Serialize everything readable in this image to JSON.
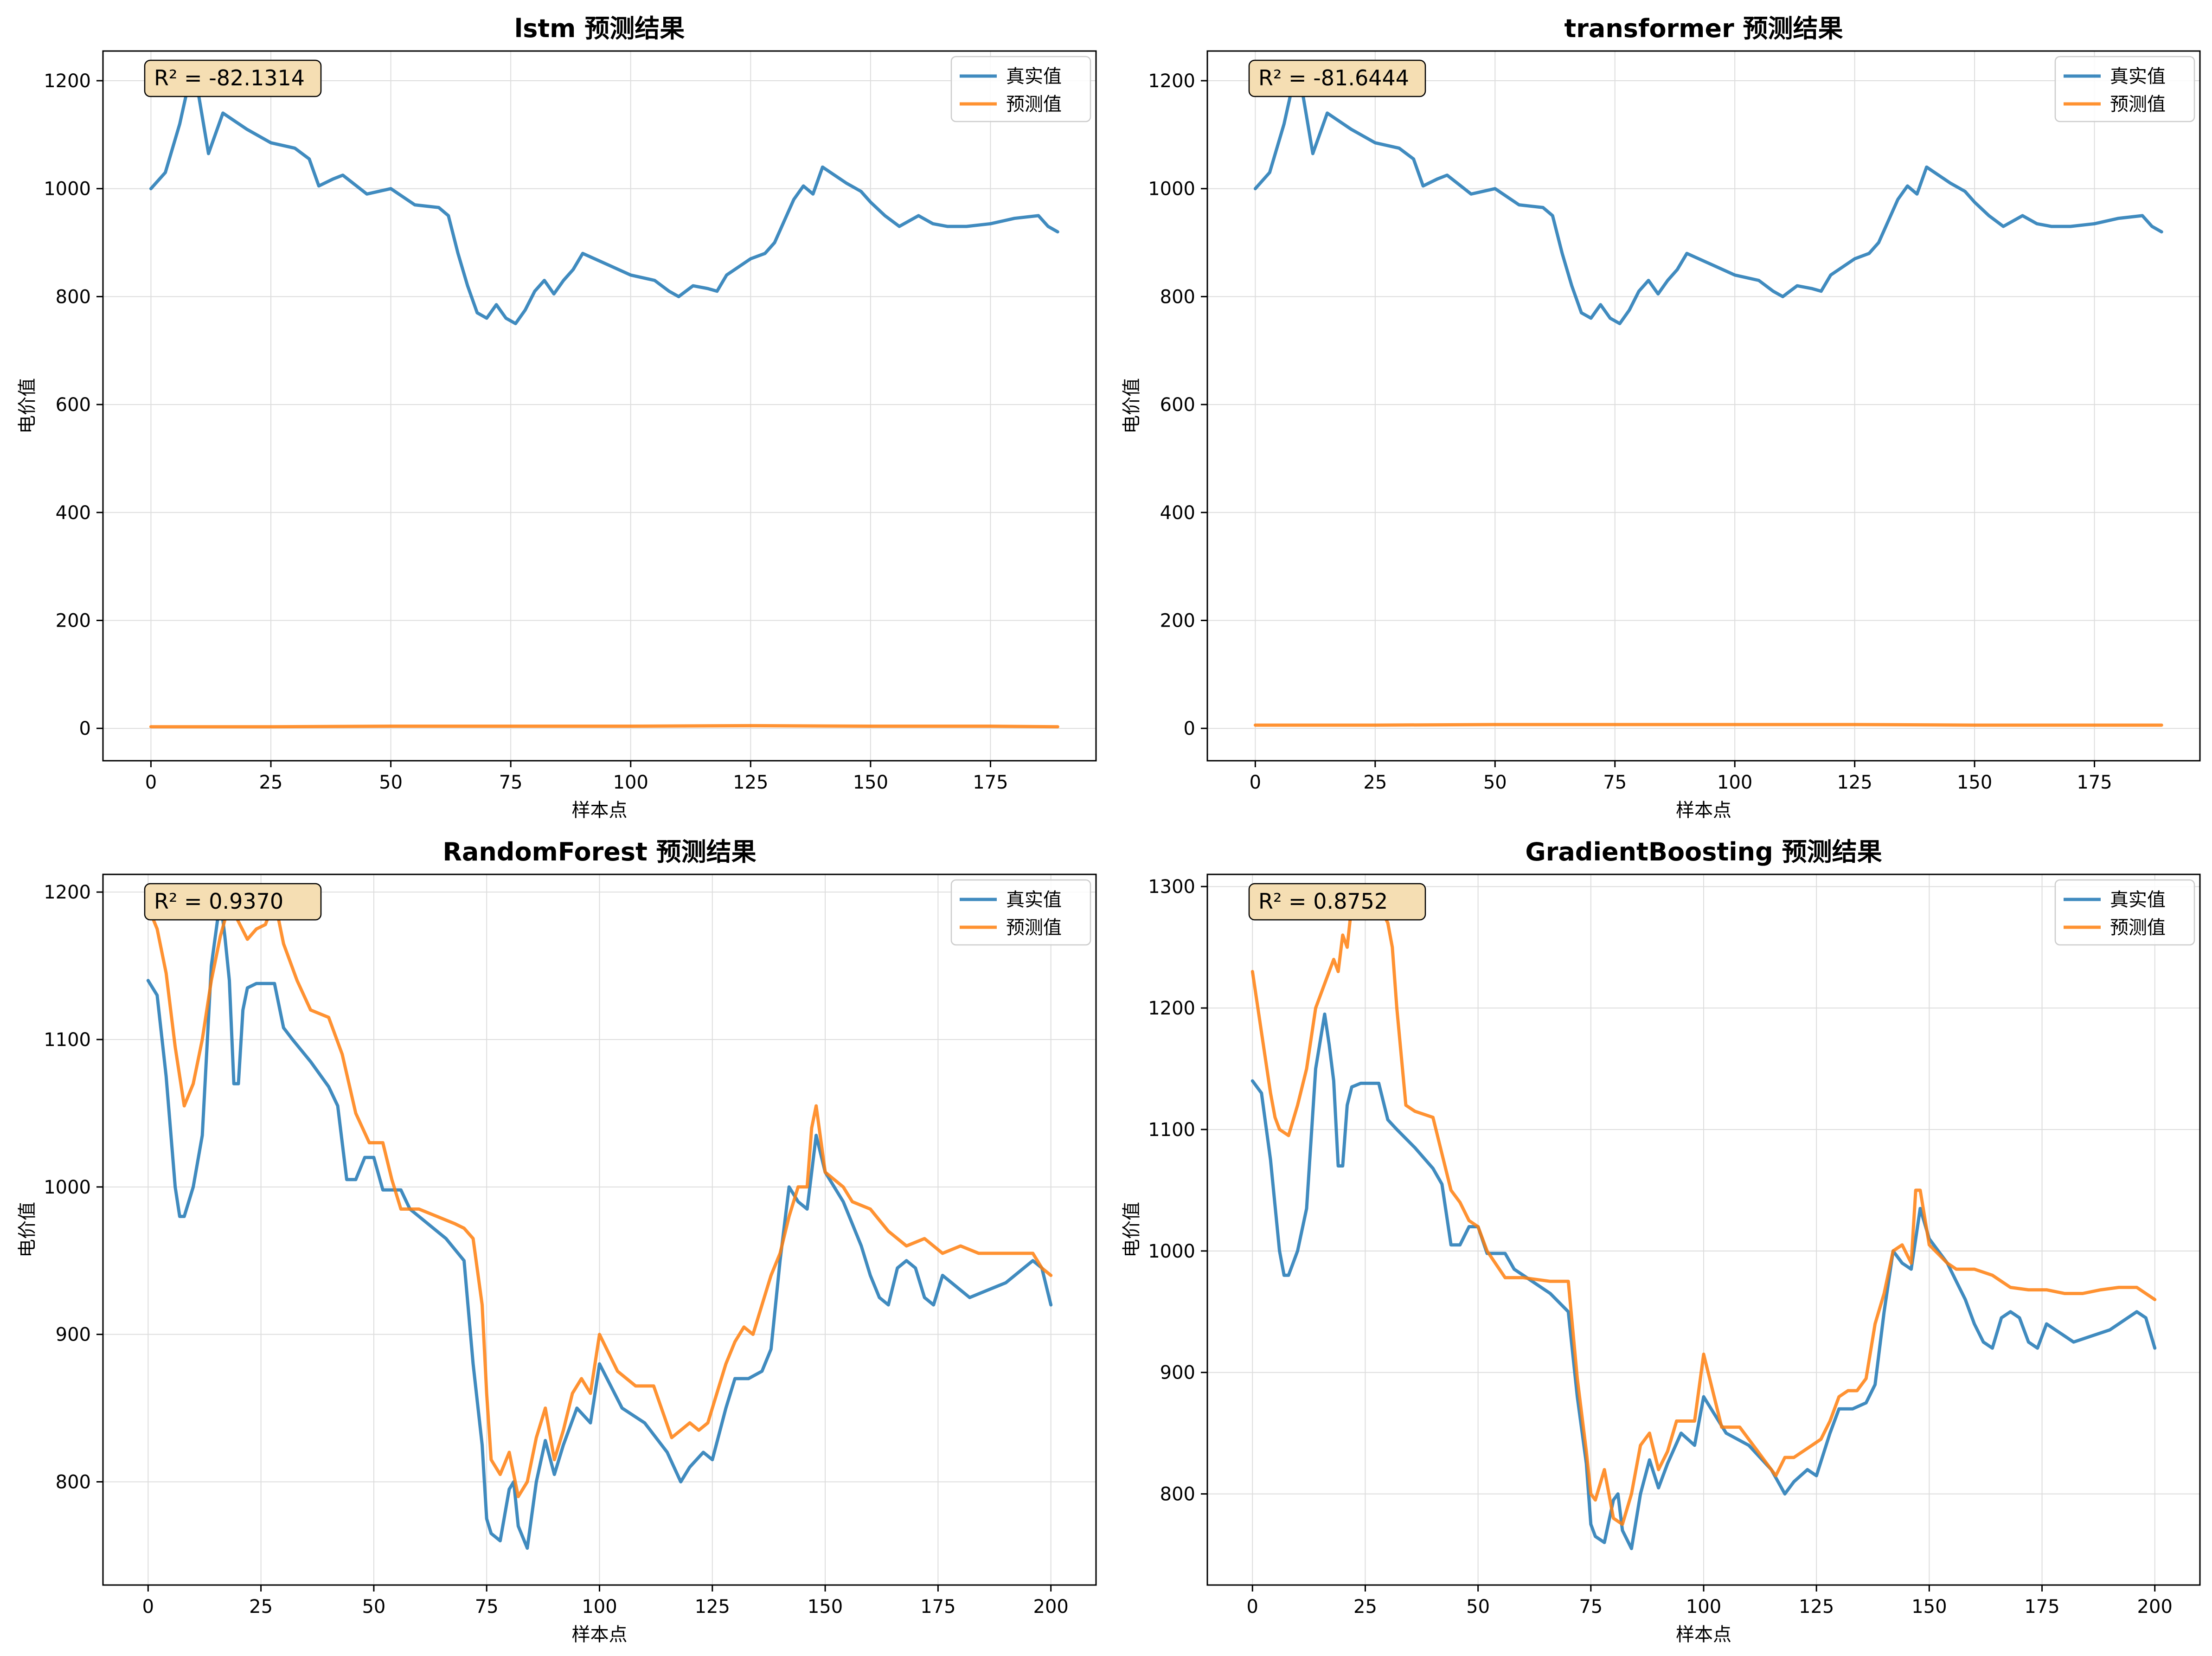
{
  "colors": {
    "actual": "#1f77b4",
    "predicted": "#ff7f0e",
    "r2_box_fill": "#f5deb3",
    "grid": "#dddddd"
  },
  "chart_data": [
    {
      "type": "line",
      "title": "lstm 预测结果",
      "xlabel": "样本点",
      "ylabel": "电价值",
      "xlim": [
        -10,
        197
      ],
      "ylim": [
        -60,
        1255
      ],
      "xticks": [
        0,
        25,
        50,
        75,
        100,
        125,
        150,
        175
      ],
      "yticks": [
        0,
        200,
        400,
        600,
        800,
        1000,
        1200
      ],
      "grid": true,
      "legend_position": "top-right",
      "annotation": "R² = -82.1314",
      "series": [
        {
          "name": "真实值",
          "x": [
            0,
            3,
            6,
            8,
            10,
            12,
            15,
            20,
            25,
            30,
            33,
            35,
            38,
            40,
            45,
            50,
            55,
            60,
            62,
            64,
            66,
            68,
            70,
            72,
            74,
            76,
            78,
            80,
            82,
            84,
            86,
            88,
            90,
            95,
            100,
            105,
            108,
            110,
            113,
            116,
            118,
            120,
            125,
            128,
            130,
            132,
            134,
            136,
            138,
            140,
            145,
            148,
            150,
            153,
            156,
            160,
            163,
            166,
            170,
            175,
            180,
            185,
            187,
            189
          ],
          "y": [
            1000,
            1030,
            1120,
            1200,
            1170,
            1065,
            1140,
            1110,
            1085,
            1075,
            1055,
            1005,
            1018,
            1025,
            990,
            1000,
            970,
            965,
            950,
            880,
            820,
            770,
            760,
            785,
            760,
            750,
            775,
            810,
            830,
            805,
            830,
            850,
            880,
            860,
            840,
            830,
            810,
            800,
            820,
            815,
            810,
            840,
            870,
            880,
            900,
            940,
            980,
            1005,
            990,
            1040,
            1010,
            995,
            975,
            950,
            930,
            950,
            935,
            930,
            930,
            935,
            945,
            950,
            930,
            920
          ]
        },
        {
          "name": "预测值",
          "x": [
            0,
            25,
            50,
            75,
            100,
            125,
            150,
            175,
            189
          ],
          "y": [
            3,
            3,
            4,
            4,
            4,
            5,
            4,
            4,
            3
          ]
        }
      ]
    },
    {
      "type": "line",
      "title": "transformer 预测结果",
      "xlabel": "样本点",
      "ylabel": "电价值",
      "xlim": [
        -10,
        197
      ],
      "ylim": [
        -60,
        1255
      ],
      "xticks": [
        0,
        25,
        50,
        75,
        100,
        125,
        150,
        175
      ],
      "yticks": [
        0,
        200,
        400,
        600,
        800,
        1000,
        1200
      ],
      "grid": true,
      "legend_position": "top-right",
      "annotation": "R² = -81.6444",
      "series": [
        {
          "name": "真实值",
          "x": [
            0,
            3,
            6,
            8,
            10,
            12,
            15,
            20,
            25,
            30,
            33,
            35,
            38,
            40,
            45,
            50,
            55,
            60,
            62,
            64,
            66,
            68,
            70,
            72,
            74,
            76,
            78,
            80,
            82,
            84,
            86,
            88,
            90,
            95,
            100,
            105,
            108,
            110,
            113,
            116,
            118,
            120,
            125,
            128,
            130,
            132,
            134,
            136,
            138,
            140,
            145,
            148,
            150,
            153,
            156,
            160,
            163,
            166,
            170,
            175,
            180,
            185,
            187,
            189
          ],
          "y": [
            1000,
            1030,
            1120,
            1200,
            1170,
            1065,
            1140,
            1110,
            1085,
            1075,
            1055,
            1005,
            1018,
            1025,
            990,
            1000,
            970,
            965,
            950,
            880,
            820,
            770,
            760,
            785,
            760,
            750,
            775,
            810,
            830,
            805,
            830,
            850,
            880,
            860,
            840,
            830,
            810,
            800,
            820,
            815,
            810,
            840,
            870,
            880,
            900,
            940,
            980,
            1005,
            990,
            1040,
            1010,
            995,
            975,
            950,
            930,
            950,
            935,
            930,
            930,
            935,
            945,
            950,
            930,
            920
          ]
        },
        {
          "name": "预测值",
          "x": [
            0,
            25,
            50,
            75,
            100,
            125,
            150,
            175,
            189
          ],
          "y": [
            6,
            6,
            7,
            7,
            7,
            7,
            6,
            6,
            6
          ]
        }
      ]
    },
    {
      "type": "line",
      "title": "RandomForest 预测结果",
      "xlabel": "样本点",
      "ylabel": "电价值",
      "xlim": [
        -10,
        210
      ],
      "ylim": [
        730,
        1212
      ],
      "xticks": [
        0,
        25,
        50,
        75,
        100,
        125,
        150,
        175,
        200
      ],
      "yticks": [
        800,
        900,
        1000,
        1100,
        1200
      ],
      "grid": true,
      "legend_position": "top-right",
      "annotation": "R² = 0.9370",
      "series": [
        {
          "name": "真实值",
          "x": [
            0,
            2,
            4,
            6,
            7,
            8,
            10,
            12,
            14,
            16,
            17,
            18,
            19,
            20,
            21,
            22,
            24,
            28,
            30,
            32,
            36,
            40,
            42,
            44,
            46,
            48,
            50,
            52,
            56,
            58,
            62,
            66,
            70,
            72,
            74,
            75,
            76,
            78,
            80,
            81,
            82,
            84,
            86,
            88,
            90,
            92,
            95,
            98,
            100,
            105,
            110,
            115,
            118,
            120,
            123,
            125,
            128,
            130,
            133,
            136,
            138,
            140,
            142,
            144,
            146,
            148,
            150,
            154,
            156,
            158,
            160,
            162,
            164,
            166,
            168,
            170,
            172,
            174,
            176,
            178,
            182,
            186,
            190,
            194,
            196,
            198,
            200
          ],
          "y": [
            1140,
            1130,
            1075,
            1000,
            980,
            980,
            1000,
            1035,
            1150,
            1195,
            1170,
            1140,
            1070,
            1070,
            1120,
            1135,
            1138,
            1138,
            1108,
            1100,
            1085,
            1068,
            1055,
            1005,
            1005,
            1020,
            1020,
            998,
            998,
            985,
            975,
            965,
            950,
            880,
            825,
            775,
            765,
            760,
            795,
            800,
            770,
            755,
            800,
            828,
            805,
            825,
            850,
            840,
            880,
            850,
            840,
            820,
            800,
            810,
            820,
            815,
            850,
            870,
            870,
            875,
            890,
            950,
            1000,
            990,
            985,
            1035,
            1010,
            990,
            975,
            960,
            940,
            925,
            920,
            945,
            950,
            945,
            925,
            920,
            940,
            935,
            925,
            930,
            935,
            945,
            950,
            945,
            920
          ]
        },
        {
          "name": "预测值",
          "x": [
            0,
            2,
            4,
            6,
            8,
            10,
            12,
            14,
            16,
            18,
            20,
            22,
            24,
            26,
            28,
            30,
            33,
            36,
            40,
            43,
            46,
            49,
            52,
            54,
            56,
            60,
            64,
            68,
            70,
            72,
            74,
            75,
            76,
            78,
            80,
            82,
            84,
            86,
            88,
            90,
            92,
            94,
            96,
            98,
            100,
            104,
            108,
            112,
            116,
            118,
            120,
            122,
            124,
            126,
            128,
            130,
            132,
            134,
            136,
            138,
            140,
            142,
            144,
            146,
            147,
            148,
            150,
            154,
            156,
            160,
            164,
            168,
            172,
            176,
            180,
            184,
            188,
            192,
            196,
            198,
            200
          ],
          "y": [
            1190,
            1175,
            1145,
            1095,
            1055,
            1070,
            1100,
            1140,
            1170,
            1192,
            1180,
            1168,
            1175,
            1178,
            1195,
            1165,
            1140,
            1120,
            1115,
            1090,
            1050,
            1030,
            1030,
            1005,
            985,
            985,
            980,
            975,
            972,
            965,
            920,
            860,
            815,
            805,
            820,
            790,
            800,
            830,
            850,
            815,
            835,
            860,
            870,
            860,
            900,
            875,
            865,
            865,
            830,
            835,
            840,
            835,
            840,
            860,
            880,
            895,
            905,
            900,
            920,
            940,
            955,
            980,
            1000,
            1000,
            1040,
            1055,
            1010,
            1000,
            990,
            985,
            970,
            960,
            965,
            955,
            960,
            955,
            955,
            955,
            955,
            945,
            940
          ]
        }
      ]
    },
    {
      "type": "line",
      "title": "GradientBoosting 预测结果",
      "xlabel": "样本点",
      "ylabel": "电价值",
      "xlim": [
        -10,
        210
      ],
      "ylim": [
        725,
        1310
      ],
      "xticks": [
        0,
        25,
        50,
        75,
        100,
        125,
        150,
        175,
        200
      ],
      "yticks": [
        800,
        900,
        1000,
        1100,
        1200,
        1300
      ],
      "grid": true,
      "legend_position": "top-right",
      "annotation": "R² = 0.8752",
      "series": [
        {
          "name": "真实值",
          "x": [
            0,
            2,
            4,
            6,
            7,
            8,
            10,
            12,
            14,
            16,
            17,
            18,
            19,
            20,
            21,
            22,
            24,
            28,
            30,
            32,
            36,
            40,
            42,
            44,
            46,
            48,
            50,
            52,
            56,
            58,
            62,
            66,
            70,
            72,
            74,
            75,
            76,
            78,
            80,
            81,
            82,
            84,
            86,
            88,
            90,
            92,
            95,
            98,
            100,
            105,
            110,
            115,
            118,
            120,
            123,
            125,
            128,
            130,
            133,
            136,
            138,
            140,
            142,
            144,
            146,
            148,
            150,
            154,
            156,
            158,
            160,
            162,
            164,
            166,
            168,
            170,
            172,
            174,
            176,
            178,
            182,
            186,
            190,
            194,
            196,
            198,
            200
          ],
          "y": [
            1140,
            1130,
            1075,
            1000,
            980,
            980,
            1000,
            1035,
            1150,
            1195,
            1170,
            1140,
            1070,
            1070,
            1120,
            1135,
            1138,
            1138,
            1108,
            1100,
            1085,
            1068,
            1055,
            1005,
            1005,
            1020,
            1020,
            998,
            998,
            985,
            975,
            965,
            950,
            880,
            825,
            775,
            765,
            760,
            795,
            800,
            770,
            755,
            800,
            828,
            805,
            825,
            850,
            840,
            880,
            850,
            840,
            820,
            800,
            810,
            820,
            815,
            850,
            870,
            870,
            875,
            890,
            950,
            1000,
            990,
            985,
            1035,
            1010,
            990,
            975,
            960,
            940,
            925,
            920,
            945,
            950,
            945,
            925,
            920,
            940,
            935,
            925,
            930,
            935,
            945,
            950,
            945,
            920
          ]
        },
        {
          "name": "预测值",
          "x": [
            0,
            2,
            4,
            5,
            6,
            8,
            10,
            12,
            14,
            16,
            18,
            19,
            20,
            21,
            22,
            24,
            26,
            28,
            30,
            31,
            32,
            34,
            36,
            40,
            42,
            44,
            46,
            48,
            50,
            52,
            56,
            60,
            66,
            70,
            72,
            74,
            75,
            76,
            78,
            80,
            82,
            84,
            86,
            88,
            90,
            92,
            94,
            96,
            98,
            100,
            104,
            108,
            112,
            116,
            118,
            120,
            122,
            124,
            126,
            128,
            130,
            132,
            134,
            136,
            138,
            140,
            142,
            144,
            146,
            147,
            148,
            150,
            154,
            156,
            160,
            164,
            168,
            172,
            176,
            180,
            184,
            188,
            192,
            196,
            198,
            200
          ],
          "y": [
            1230,
            1180,
            1130,
            1110,
            1100,
            1095,
            1120,
            1150,
            1200,
            1220,
            1240,
            1230,
            1260,
            1250,
            1285,
            1290,
            1295,
            1285,
            1270,
            1250,
            1200,
            1120,
            1115,
            1110,
            1080,
            1050,
            1040,
            1025,
            1020,
            1000,
            978,
            978,
            975,
            975,
            895,
            835,
            800,
            795,
            820,
            780,
            775,
            800,
            840,
            850,
            820,
            835,
            860,
            860,
            860,
            915,
            855,
            855,
            835,
            815,
            830,
            830,
            835,
            840,
            845,
            860,
            880,
            885,
            885,
            895,
            940,
            965,
            1000,
            1005,
            990,
            1050,
            1050,
            1005,
            990,
            985,
            985,
            980,
            970,
            968,
            968,
            965,
            965,
            968,
            970,
            970,
            965,
            960
          ]
        }
      ]
    }
  ]
}
